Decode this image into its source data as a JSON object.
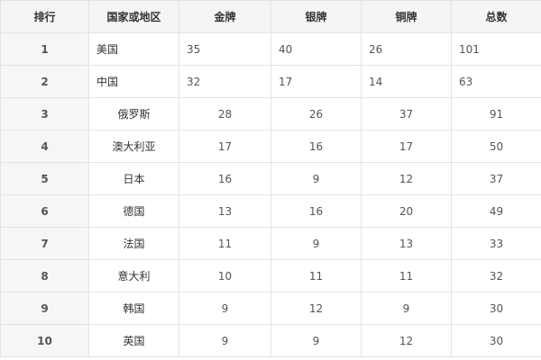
{
  "headers": [
    "排行",
    "国家或地区",
    "金牌",
    "银牌",
    "铜牌",
    "总数"
  ],
  "rows": [
    {
      "rank": "1",
      "country": "美国",
      "gold": "35",
      "silver": "40",
      "bronze": "26",
      "total": "101"
    },
    {
      "rank": "2",
      "country": "中国",
      "gold": "32",
      "silver": "17",
      "bronze": "14",
      "total": "63"
    },
    {
      "rank": "3",
      "country": "俄罗斯",
      "gold": "28",
      "silver": "26",
      "bronze": "37",
      "total": "91"
    },
    {
      "rank": "4",
      "country": "澳大利亚",
      "gold": "17",
      "silver": "16",
      "bronze": "17",
      "total": "50"
    },
    {
      "rank": "5",
      "country": "日本",
      "gold": "16",
      "silver": "9",
      "bronze": "12",
      "total": "37"
    },
    {
      "rank": "6",
      "country": "德国",
      "gold": "13",
      "silver": "16",
      "bronze": "20",
      "total": "49"
    },
    {
      "rank": "7",
      "country": "法国",
      "gold": "11",
      "silver": "9",
      "bronze": "13",
      "total": "33"
    },
    {
      "rank": "8",
      "country": "意大利",
      "gold": "10",
      "silver": "11",
      "bronze": "11",
      "total": "32"
    },
    {
      "rank": "9",
      "country": "韩国",
      "gold": "9",
      "silver": "12",
      "bronze": "9",
      "total": "30"
    },
    {
      "rank": "10",
      "country": "英国",
      "gold": "9",
      "silver": "9",
      "bronze": "12",
      "total": "30"
    }
  ]
}
